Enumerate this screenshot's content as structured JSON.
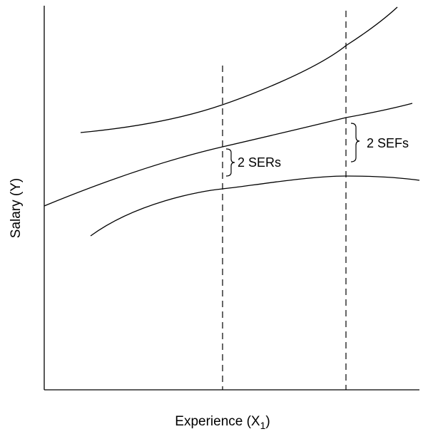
{
  "axes": {
    "y_label": "Salary (Y)",
    "x_label_main": "Experience (X",
    "x_label_sub": "1",
    "x_label_close": ")"
  },
  "annotations": {
    "ser": "2 SERs",
    "sef": "2 SEFs"
  },
  "colors": {
    "line": "#000000",
    "background": "#ffffff"
  }
}
